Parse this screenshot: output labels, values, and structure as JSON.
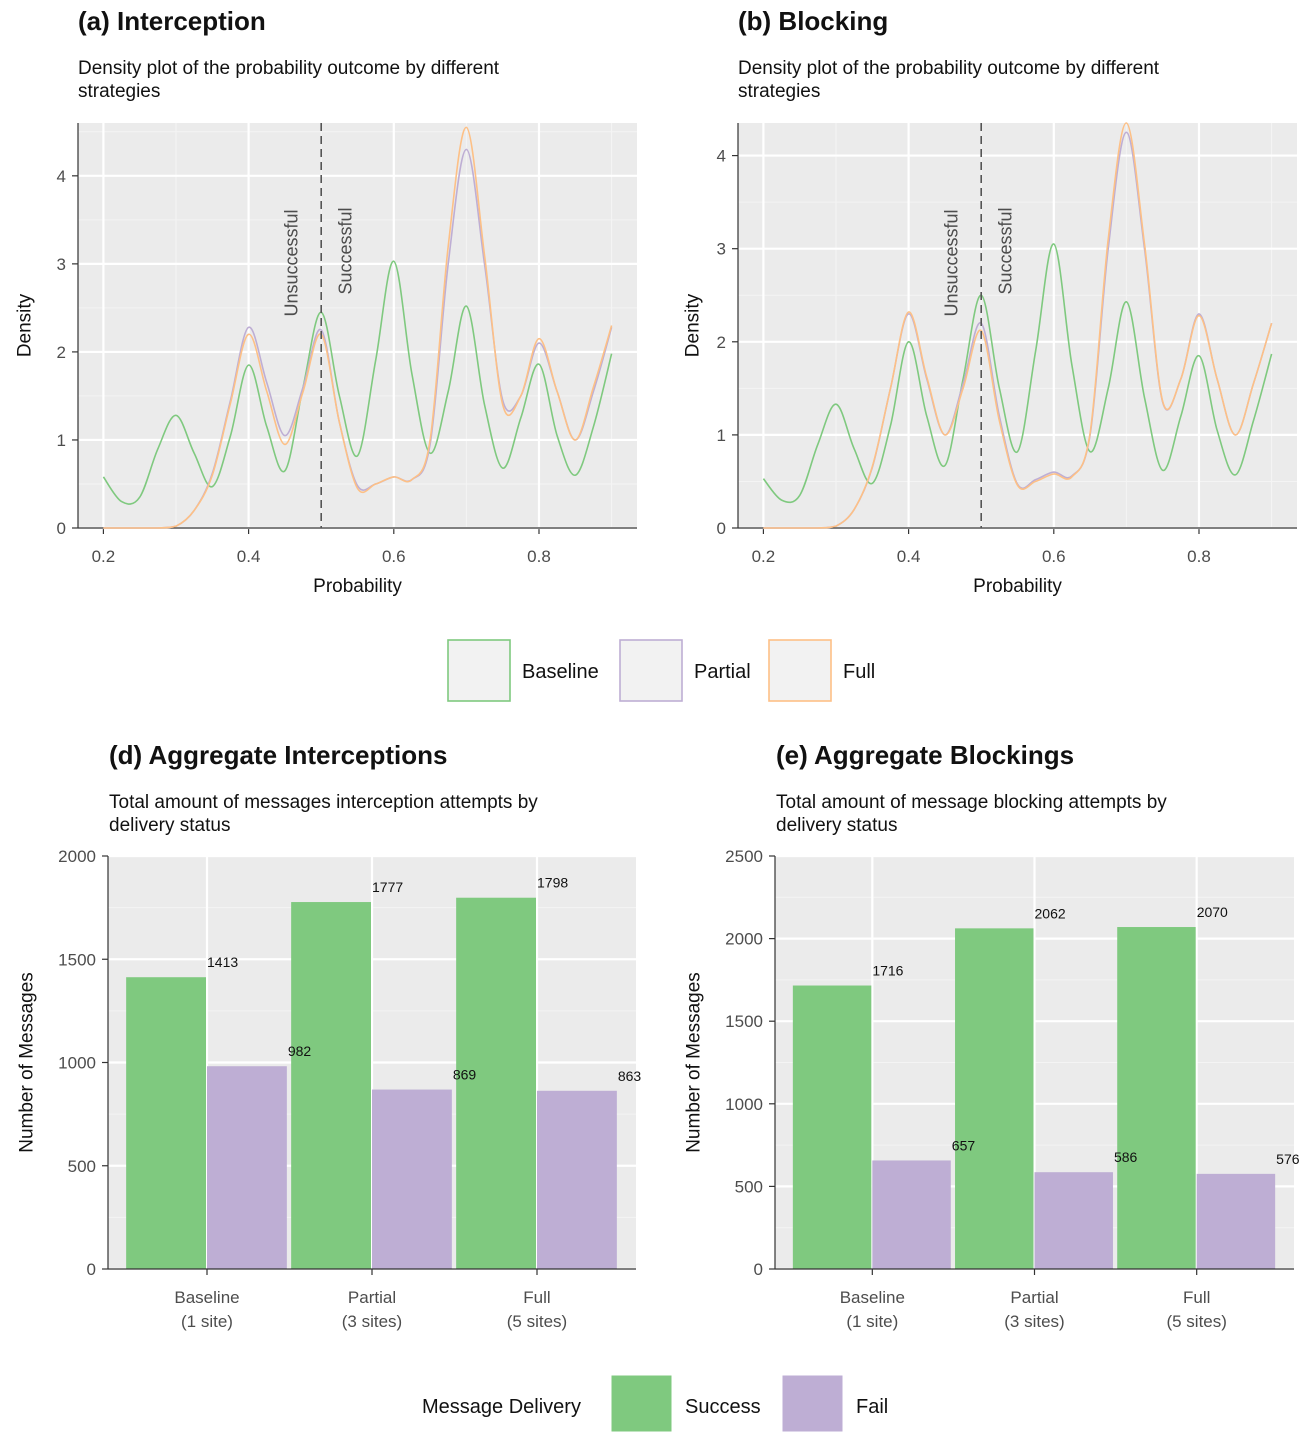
{
  "legend_top": {
    "items": [
      {
        "label": "Baseline",
        "color": "#7fc97f"
      },
      {
        "label": "Partial",
        "color": "#beaed4"
      },
      {
        "label": "Full",
        "color": "#fdc086"
      }
    ]
  },
  "legend_bottom": {
    "title": "Message Delivery",
    "items": [
      {
        "label": "Success",
        "color": "#7fc97f"
      },
      {
        "label": "Fail",
        "color": "#beaed4"
      }
    ]
  },
  "chart_data": [
    {
      "type": "line",
      "title": "(a) Interception",
      "subtitle_lines": [
        "Density plot of the probability outcome by different",
        "strategies"
      ],
      "xlabel": "Probability",
      "ylabel": "Density",
      "xlim": [
        0.165,
        0.935
      ],
      "ylim": [
        0,
        4.6
      ],
      "xticks": [
        0.2,
        0.4,
        0.6,
        0.8
      ],
      "xtick_labels": [
        "0.2",
        "0.4",
        "0.6",
        "0.8"
      ],
      "yticks": [
        0,
        1,
        2,
        3,
        4
      ],
      "ytick_labels": [
        "0",
        "1",
        "2",
        "3",
        "4"
      ],
      "grid": true,
      "threshold": 0.5,
      "threshold_labels": [
        "Unsuccessful",
        "Successful"
      ],
      "x": [
        0.2,
        0.225,
        0.25,
        0.275,
        0.3,
        0.325,
        0.35,
        0.375,
        0.4,
        0.425,
        0.45,
        0.475,
        0.5,
        0.525,
        0.55,
        0.575,
        0.6,
        0.625,
        0.65,
        0.675,
        0.7,
        0.725,
        0.75,
        0.775,
        0.8,
        0.825,
        0.85,
        0.875,
        0.9
      ],
      "series": [
        {
          "name": "Baseline",
          "color": "#7fc97f",
          "values": [
            0.58,
            0.3,
            0.35,
            0.9,
            1.28,
            0.85,
            0.47,
            1.05,
            1.85,
            1.15,
            0.65,
            1.6,
            2.45,
            1.5,
            0.82,
            1.9,
            3.03,
            1.75,
            0.85,
            1.55,
            2.52,
            1.4,
            0.68,
            1.25,
            1.86,
            1.05,
            0.6,
            1.15,
            1.98
          ]
        },
        {
          "name": "Partial",
          "color": "#beaed4",
          "values": [
            0,
            0,
            0,
            0,
            0.02,
            0.2,
            0.62,
            1.45,
            2.28,
            1.65,
            1.05,
            1.6,
            2.25,
            1.2,
            0.48,
            0.5,
            0.58,
            0.55,
            0.95,
            3.0,
            4.3,
            3.0,
            1.45,
            1.5,
            2.1,
            1.55,
            1.0,
            1.55,
            2.28
          ]
        },
        {
          "name": "Full",
          "color": "#fdc086",
          "values": [
            0,
            0,
            0,
            0,
            0.02,
            0.2,
            0.6,
            1.42,
            2.2,
            1.55,
            0.95,
            1.55,
            2.2,
            1.2,
            0.45,
            0.5,
            0.58,
            0.55,
            1.0,
            3.2,
            4.55,
            3.1,
            1.4,
            1.5,
            2.15,
            1.55,
            1.0,
            1.6,
            2.3
          ]
        }
      ]
    },
    {
      "type": "line",
      "title": "(b) Blocking",
      "subtitle_lines": [
        "Density plot of the probability outcome by different",
        "strategies"
      ],
      "xlabel": "Probability",
      "ylabel": "Density",
      "xlim": [
        0.165,
        0.935
      ],
      "ylim": [
        0,
        4.35
      ],
      "xticks": [
        0.2,
        0.4,
        0.6,
        0.8
      ],
      "xtick_labels": [
        "0.2",
        "0.4",
        "0.6",
        "0.8"
      ],
      "yticks": [
        0,
        1,
        2,
        3,
        4
      ],
      "ytick_labels": [
        "0",
        "1",
        "2",
        "3",
        "4"
      ],
      "grid": true,
      "threshold": 0.5,
      "threshold_labels": [
        "Unsuccessful",
        "Successful"
      ],
      "x": [
        0.2,
        0.225,
        0.25,
        0.275,
        0.3,
        0.325,
        0.35,
        0.375,
        0.4,
        0.425,
        0.45,
        0.475,
        0.5,
        0.525,
        0.55,
        0.575,
        0.6,
        0.625,
        0.65,
        0.675,
        0.7,
        0.725,
        0.75,
        0.775,
        0.8,
        0.825,
        0.85,
        0.875,
        0.9
      ],
      "series": [
        {
          "name": "Baseline",
          "color": "#7fc97f",
          "values": [
            0.53,
            0.3,
            0.35,
            0.9,
            1.33,
            0.85,
            0.48,
            1.1,
            2.0,
            1.2,
            0.67,
            1.6,
            2.5,
            1.5,
            0.82,
            1.9,
            3.05,
            1.75,
            0.82,
            1.5,
            2.43,
            1.4,
            0.62,
            1.2,
            1.85,
            1.05,
            0.57,
            1.15,
            1.87
          ]
        },
        {
          "name": "Partial",
          "color": "#beaed4",
          "values": [
            0,
            0,
            0,
            0,
            0.02,
            0.2,
            0.65,
            1.5,
            2.3,
            1.6,
            1.0,
            1.55,
            2.2,
            1.2,
            0.47,
            0.52,
            0.6,
            0.56,
            1.0,
            3.0,
            4.25,
            3.0,
            1.35,
            1.6,
            2.3,
            1.6,
            1.0,
            1.55,
            2.2
          ]
        },
        {
          "name": "Full",
          "color": "#fdc086",
          "values": [
            0,
            0,
            0,
            0,
            0.02,
            0.2,
            0.66,
            1.5,
            2.32,
            1.62,
            1.0,
            1.5,
            2.12,
            1.15,
            0.46,
            0.5,
            0.58,
            0.55,
            1.02,
            3.1,
            4.35,
            3.05,
            1.36,
            1.6,
            2.28,
            1.6,
            1.0,
            1.55,
            2.2
          ]
        }
      ]
    },
    {
      "type": "bar",
      "title": "(d) Aggregate Interceptions",
      "subtitle_lines": [
        "Total amount of messages interception attempts by",
        "delivery status"
      ],
      "xlabel": "",
      "ylabel": "Number of Messages",
      "categories": [
        [
          "Baseline",
          "(1 site)"
        ],
        [
          "Partial",
          "(3 sites)"
        ],
        [
          "Full",
          "(5 sites)"
        ]
      ],
      "ylim": [
        0,
        2000
      ],
      "yticks": [
        0,
        500,
        1000,
        1500,
        2000
      ],
      "ytick_labels": [
        "0",
        "500",
        "1000",
        "1500",
        "2000"
      ],
      "grid": true,
      "series": [
        {
          "name": "Success",
          "color": "#7fc97f",
          "values": [
            1413,
            1777,
            1798
          ],
          "labels": [
            "1413",
            "1777",
            "1798"
          ]
        },
        {
          "name": "Fail",
          "color": "#beaed4",
          "values": [
            982,
            869,
            863
          ],
          "labels": [
            "982",
            "869",
            "863"
          ]
        }
      ]
    },
    {
      "type": "bar",
      "title": "(e) Aggregate Blockings",
      "subtitle_lines": [
        "Total amount of message blocking attempts by",
        "delivery status"
      ],
      "xlabel": "",
      "ylabel": "Number of Messages",
      "categories": [
        [
          "Baseline",
          "(1 site)"
        ],
        [
          "Partial",
          "(3 sites)"
        ],
        [
          "Full",
          "(5 sites)"
        ]
      ],
      "ylim": [
        0,
        2500
      ],
      "yticks": [
        0,
        500,
        1000,
        1500,
        2000,
        2500
      ],
      "ytick_labels": [
        "0",
        "500",
        "1000",
        "1500",
        "2000",
        "2500"
      ],
      "grid": true,
      "series": [
        {
          "name": "Success",
          "color": "#7fc97f",
          "values": [
            1716,
            2062,
            2070
          ],
          "labels": [
            "1716",
            "2062",
            "2070"
          ]
        },
        {
          "name": "Fail",
          "color": "#beaed4",
          "values": [
            657,
            586,
            576
          ],
          "labels": [
            "657",
            "586",
            "576"
          ]
        }
      ]
    }
  ]
}
